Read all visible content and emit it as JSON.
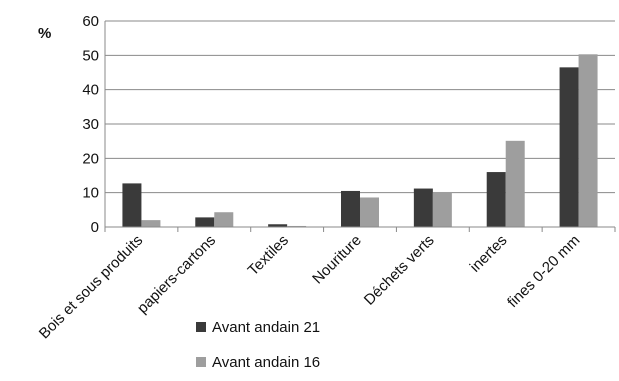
{
  "chart_data": {
    "type": "bar",
    "ylabel": "%",
    "ylim": [
      0,
      60
    ],
    "yticks": [
      0,
      10,
      20,
      30,
      40,
      50,
      60
    ],
    "grid": "horizontal",
    "legend_position": "bottom",
    "categories": [
      "Bois et sous produits",
      "papiers-cartons",
      "Textiles",
      "Nouriture",
      "Déchets verts",
      "inertes",
      "fines 0-20 mm"
    ],
    "series": [
      {
        "name": "Avant andain 21",
        "color": "#3a3a3a",
        "values": [
          12.7,
          2.8,
          0.8,
          10.5,
          11.2,
          16.0,
          46.5
        ]
      },
      {
        "name": "Avant andain 16",
        "color": "#9e9e9e",
        "values": [
          2.0,
          4.3,
          0.3,
          8.6,
          10.2,
          25.1,
          50.3
        ]
      }
    ]
  }
}
